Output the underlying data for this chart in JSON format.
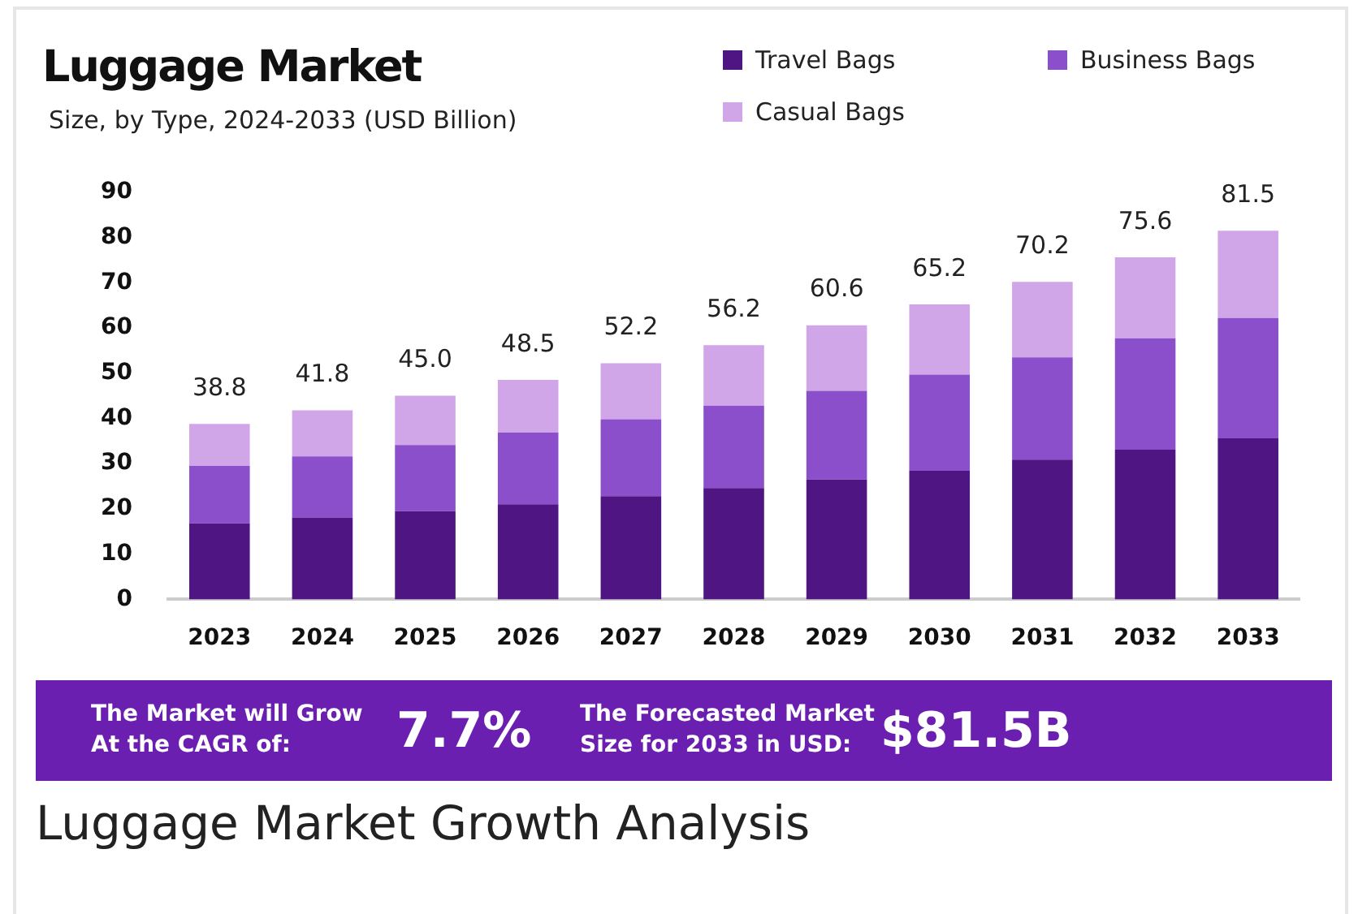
{
  "chart_data": {
    "type": "bar",
    "title": "Luggage Market",
    "subtitle": "Size, by Type, 2024-2033 (USD Billion)",
    "categories": [
      "2023",
      "2024",
      "2025",
      "2026",
      "2027",
      "2028",
      "2029",
      "2030",
      "2031",
      "2032",
      "2033"
    ],
    "series": [
      {
        "name": "Travel Bags",
        "color": "#4f1582",
        "values": [
          16.8,
          18.1,
          19.5,
          21.0,
          22.8,
          24.6,
          26.5,
          28.4,
          30.9,
          33.1,
          35.6
        ]
      },
      {
        "name": "Business Bags",
        "color": "#8b4fcb",
        "values": [
          12.7,
          13.5,
          14.6,
          15.9,
          17.0,
          18.2,
          19.6,
          21.3,
          22.6,
          24.6,
          26.6
        ]
      },
      {
        "name": "Casual Bags",
        "color": "#d1a6e8",
        "values": [
          9.3,
          10.2,
          10.9,
          11.6,
          12.4,
          13.4,
          14.5,
          15.5,
          16.7,
          17.9,
          19.3
        ]
      }
    ],
    "stacked": true,
    "totals": [
      "38.8",
      "41.8",
      "45.0",
      "48.5",
      "52.2",
      "56.2",
      "60.6",
      "65.2",
      "70.2",
      "75.6",
      "81.5"
    ],
    "ylim": [
      0,
      90
    ],
    "yticks": [
      0,
      10,
      20,
      30,
      40,
      50,
      60,
      70,
      80,
      90
    ],
    "grid": false,
    "legend": "top right",
    "annotations": [
      "The Market will Grow At the CAGR of:",
      "7.7%",
      "The Forecasted Market Size for 2033 in USD:",
      "$81.5B",
      "Luggage Market Growth Analysis"
    ]
  }
}
